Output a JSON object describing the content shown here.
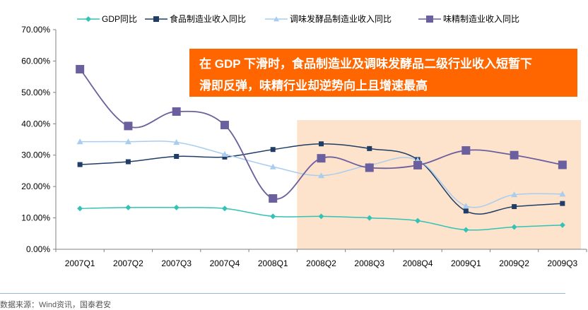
{
  "chart_data": {
    "type": "line",
    "title": "",
    "categories": [
      "2007Q1",
      "2007Q2",
      "2007Q3",
      "2007Q4",
      "2008Q1",
      "2008Q2",
      "2008Q3",
      "2008Q4",
      "2009Q1",
      "2009Q2",
      "2009Q3"
    ],
    "y_tick_labels": [
      "0.00%",
      "10.00%",
      "20.00%",
      "30.00%",
      "40.00%",
      "50.00%",
      "60.00%",
      "70.00%"
    ],
    "ylim": [
      0,
      70
    ],
    "highlight_range": [
      "2008Q2",
      "2009Q3"
    ],
    "series": [
      {
        "name": "GDP同比",
        "color": "#33c2b5",
        "marker": "diamond",
        "values": [
          13.0,
          13.3,
          13.3,
          13.0,
          10.5,
          10.5,
          10.0,
          9.1,
          6.2,
          7.1,
          7.7
        ]
      },
      {
        "name": "食品制造业收入同比",
        "color": "#1f3d66",
        "marker": "square",
        "values": [
          27.0,
          27.9,
          29.6,
          29.4,
          31.8,
          33.6,
          32.1,
          28.6,
          12.2,
          13.6,
          14.6
        ]
      },
      {
        "name": "调味发酵品制造业收入同比",
        "color": "#a8cdee",
        "marker": "triangle",
        "values": [
          34.3,
          34.3,
          34.1,
          30.3,
          26.3,
          23.5,
          26.8,
          28.4,
          13.8,
          17.4,
          17.6
        ]
      },
      {
        "name": "味精制造业收入同比",
        "color": "#6b5f9e",
        "marker": "square",
        "values": [
          57.4,
          39.3,
          43.9,
          39.6,
          16.2,
          29.0,
          26.0,
          26.8,
          31.5,
          30.0,
          26.9
        ]
      }
    ]
  },
  "callout": {
    "line1": "在 GDP 下滑时，食品制造业及调味发酵品二级行业收入短暂下",
    "line2": "滑即反弹，味精行业却逆势向上且增速最高"
  },
  "source_text": "数据来源：Wind资讯，国泰君安"
}
